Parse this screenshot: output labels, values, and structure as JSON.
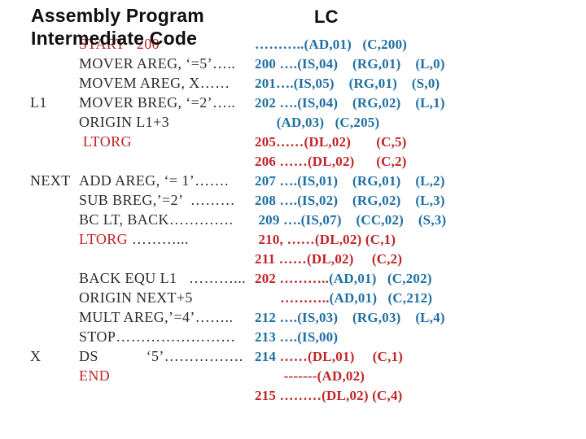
{
  "title": {
    "line1": "Assembly Program",
    "line2": "Intermediate Code",
    "lc_header": "LC"
  },
  "colors": {
    "blue": "#1e6fa3",
    "red": "#c02427",
    "dark": "#2d2a28"
  },
  "rows": [
    {
      "label": "",
      "code": [
        {
          "t": "START   200",
          "c": "red"
        }
      ],
      "lc": [
        {
          "t": "………..(AD,01)   (C,200)",
          "c": "blue"
        }
      ]
    },
    {
      "label": "",
      "code": [
        {
          "t": "MOVER AREG, ‘=5’…..",
          "c": "dark"
        }
      ],
      "lc": [
        {
          "t": "200 ….(IS,04)    (RG,01)    (L,0)",
          "c": "blue"
        }
      ]
    },
    {
      "label": "",
      "code": [
        {
          "t": "MOVEM AREG, X……",
          "c": "dark"
        }
      ],
      "lc": [
        {
          "t": "201….(IS,05)    (RG,01)    (S,0)",
          "c": "blue"
        }
      ]
    },
    {
      "label": "L1",
      "code": [
        {
          "t": "MOVER BREG, ‘=2’…..",
          "c": "dark"
        }
      ],
      "lc": [
        {
          "t": "202 ….(IS,04)    (RG,02)    (L,1)",
          "c": "blue"
        }
      ]
    },
    {
      "label": "",
      "code": [
        {
          "t": "ORIGIN L1+3",
          "c": "dark"
        }
      ],
      "lc": [
        {
          "t": "      (AD,03)   (C,205)",
          "c": "blue"
        }
      ]
    },
    {
      "label": "",
      "code": [
        {
          "t": " LTORG",
          "c": "red"
        }
      ],
      "lc": [
        {
          "t": "205……(DL,02)       (C,5)",
          "c": "red"
        }
      ]
    },
    {
      "label": "",
      "code": [],
      "lc": [
        {
          "t": "206 ……(DL,02)      (C,2)",
          "c": "red"
        }
      ]
    },
    {
      "label": "NEXT",
      "code": [
        {
          "t": "ADD AREG, ‘= 1’…….",
          "c": "dark"
        }
      ],
      "lc": [
        {
          "t": "207 ….(IS,01)    (RG,01)    (L,2)",
          "c": "blue"
        }
      ]
    },
    {
      "label": "",
      "code": [
        {
          "t": "SUB BREG,’=2’  ………",
          "c": "dark"
        }
      ],
      "lc": [
        {
          "t": "208 ….(IS,02)    (RG,02)    (L,3)",
          "c": "blue"
        }
      ]
    },
    {
      "label": "",
      "code": [
        {
          "t": "BC LT, BACK………….",
          "c": "dark"
        }
      ],
      "lc": [
        {
          "t": " 209 ….(IS,07)    (CC,02)    (S,3)",
          "c": "blue"
        }
      ]
    },
    {
      "label": "",
      "code": [
        {
          "t": "LTORG ",
          "c": "red"
        },
        {
          "t": "………...",
          "c": "dark"
        }
      ],
      "lc": [
        {
          "t": " 210, ……(DL,02) (C,1)",
          "c": "red"
        }
      ]
    },
    {
      "label": "",
      "code": [],
      "lc": [
        {
          "t": "211 ……(DL,02)     (C,2)",
          "c": "red"
        }
      ]
    },
    {
      "label": "",
      "code": [
        {
          "t": "BACK EQU L1   ………...",
          "c": "dark"
        }
      ],
      "lc": [
        {
          "t": "202 ………..",
          "c": "red"
        },
        {
          "t": "(AD,01)   (C,202)",
          "c": "blue"
        }
      ]
    },
    {
      "label": "",
      "code": [
        {
          "t": "ORIGIN NEXT+5",
          "c": "dark"
        }
      ],
      "lc": [
        {
          "t": "       ………..",
          "c": "red"
        },
        {
          "t": "(AD,01)   (C,212)",
          "c": "blue"
        }
      ]
    },
    {
      "label": "",
      "code": [
        {
          "t": "MULT AREG,’=4’……..",
          "c": "dark"
        }
      ],
      "lc": [
        {
          "t": "212 ….(IS,03)    (RG,03)    (L,4)",
          "c": "blue"
        }
      ]
    },
    {
      "label": "",
      "code": [
        {
          "t": "STOP……………………",
          "c": "dark"
        }
      ],
      "lc": [
        {
          "t": "213 ….(IS,00)",
          "c": "blue"
        }
      ]
    },
    {
      "label": "X",
      "code": [
        {
          "t": "DS            ‘5’…………….",
          "c": "dark"
        }
      ],
      "lc": [
        {
          "t": "214 ",
          "c": "blue"
        },
        {
          "t": "……(DL,01)     (C,1)",
          "c": "red"
        }
      ]
    },
    {
      "label": "",
      "code": [
        {
          "t": "END",
          "c": "red"
        }
      ],
      "lc": [
        {
          "t": "        -------(AD,02)",
          "c": "red"
        }
      ]
    },
    {
      "label": "",
      "code": [],
      "lc": [
        {
          "t": "215 ………(DL,02) (C,4)",
          "c": "red"
        }
      ]
    }
  ]
}
